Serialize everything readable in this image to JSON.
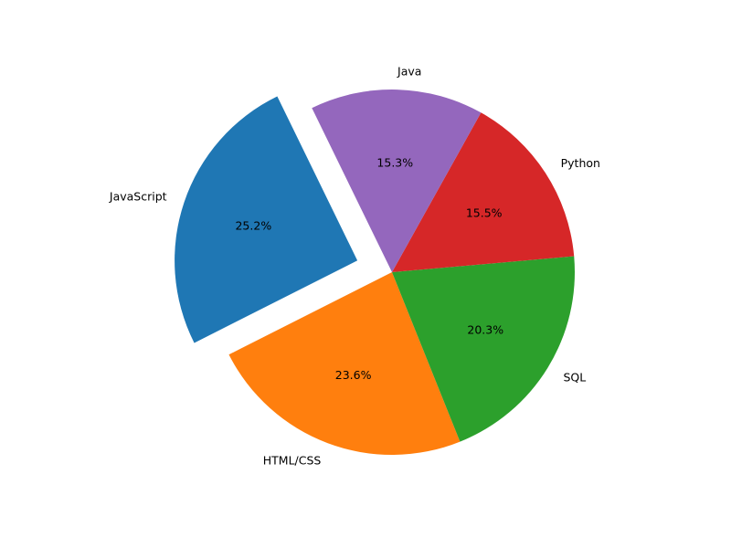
{
  "chart_data": {
    "type": "pie",
    "categories": [
      "JavaScript",
      "HTML/CSS",
      "SQL",
      "Python",
      "Java"
    ],
    "values": [
      25.2,
      23.6,
      20.3,
      15.5,
      15.3
    ],
    "percent_labels": [
      "25.2%",
      "23.6%",
      "20.3%",
      "15.5%",
      "15.3%"
    ],
    "colors": [
      "#1f77b4",
      "#ff7f0e",
      "#2ca02c",
      "#d62728",
      "#9467bd"
    ],
    "exploded": [
      "JavaScript"
    ],
    "start_angle_deg": 116,
    "direction": "counterclockwise",
    "legend": "none"
  }
}
